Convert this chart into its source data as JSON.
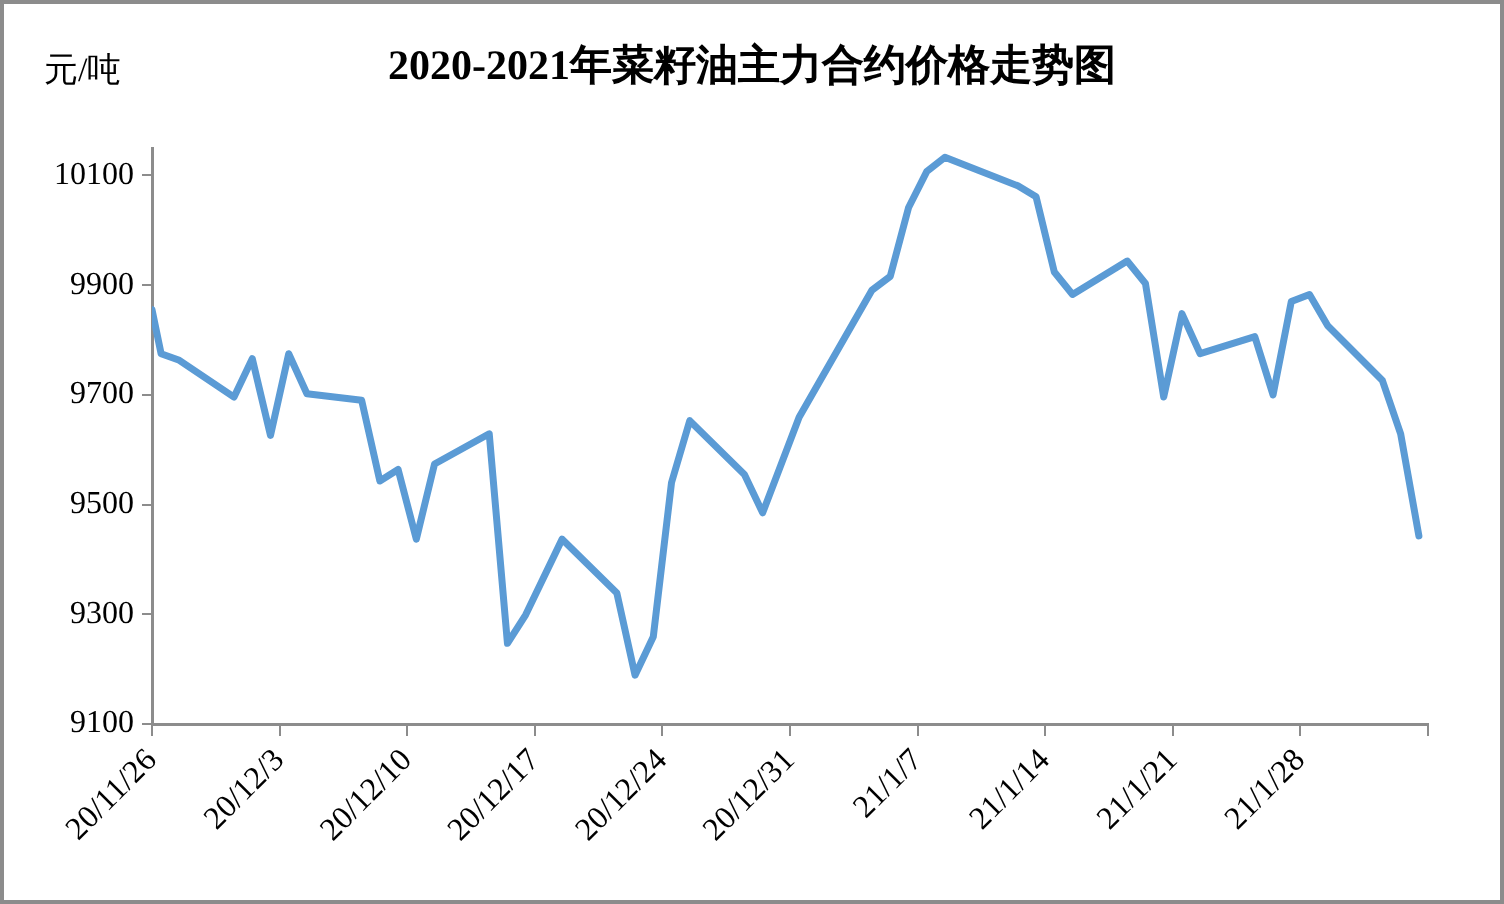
{
  "chart_data": {
    "type": "line",
    "title": "2020-2021年菜籽油主力合约价格走势图",
    "ylabel": "元/吨",
    "x": [
      "2020-11-26T00:00",
      "2020-11-26T12:00",
      "2020-11-27T12:00",
      "2020-11-30T12:00",
      "2020-12-01T12:00",
      "2020-12-02T12:00",
      "2020-12-03T12:00",
      "2020-12-04T12:00",
      "2020-12-07T12:00",
      "2020-12-08T12:00",
      "2020-12-09T12:00",
      "2020-12-10T12:00",
      "2020-12-11T12:00",
      "2020-12-14T12:00",
      "2020-12-15T12:00",
      "2020-12-16T12:00",
      "2020-12-18T12:00",
      "2020-12-21T12:00",
      "2020-12-22T12:00",
      "2020-12-23T12:00",
      "2020-12-24T12:00",
      "2020-12-25T12:00",
      "2020-12-28T12:00",
      "2020-12-29T12:00",
      "2020-12-31T12:00",
      "2021-01-04T12:00",
      "2021-01-05T12:00",
      "2021-01-06T12:00",
      "2021-01-07T12:00",
      "2021-01-08T12:00",
      "2021-01-12T12:00",
      "2021-01-13T12:00",
      "2021-01-14T12:00",
      "2021-01-15T12:00",
      "2021-01-18T12:00",
      "2021-01-19T12:00",
      "2021-01-20T12:00",
      "2021-01-21T12:00",
      "2021-01-22T12:00",
      "2021-01-25T12:00",
      "2021-01-26T12:00",
      "2021-01-27T12:00",
      "2021-01-28T12:00",
      "2021-01-29T12:00",
      "2021-02-01T12:00",
      "2021-02-02T12:00",
      "2021-02-03T12:00"
    ],
    "series": [
      {
        "color": "#5b9bd5",
        "values": [
          9855,
          9775,
          9763,
          9696,
          9766,
          9626,
          9775,
          9702,
          9690,
          9543,
          9564,
          9437,
          9574,
          9629,
          9247,
          9299,
          9437,
          9339,
          9189,
          9259,
          9540,
          9653,
          9555,
          9485,
          9659,
          9891,
          9916,
          10041,
          10107,
          10133,
          10081,
          10061,
          9924,
          9883,
          9944,
          9903,
          9696,
          9848,
          9775,
          9806,
          9700,
          9870,
          9883,
          9826,
          9726,
          9629,
          9443
        ]
      }
    ],
    "xlim": [
      "2020-11-26",
      "2021-02-04"
    ],
    "xticks": [
      {
        "value": "2020-11-26",
        "label": "20/11/26"
      },
      {
        "value": "2020-12-03",
        "label": "20/12/3"
      },
      {
        "value": "2020-12-10",
        "label": "20/12/10"
      },
      {
        "value": "2020-12-17",
        "label": "20/12/17"
      },
      {
        "value": "2020-12-24",
        "label": "20/12/24"
      },
      {
        "value": "2020-12-31",
        "label": "20/12/31"
      },
      {
        "value": "2021-01-07",
        "label": "21/1/7"
      },
      {
        "value": "2021-01-14",
        "label": "21/1/14"
      },
      {
        "value": "2021-01-21",
        "label": "21/1/21"
      },
      {
        "value": "2021-01-28",
        "label": "21/1/28"
      },
      {
        "value": "2021-02-04",
        "label": null
      }
    ],
    "ylim": [
      9100,
      10150
    ],
    "yticks": [
      9100,
      9300,
      9500,
      9700,
      9900,
      10100
    ],
    "grid": false,
    "legend": false,
    "marker": "none",
    "line_style": "solid"
  }
}
